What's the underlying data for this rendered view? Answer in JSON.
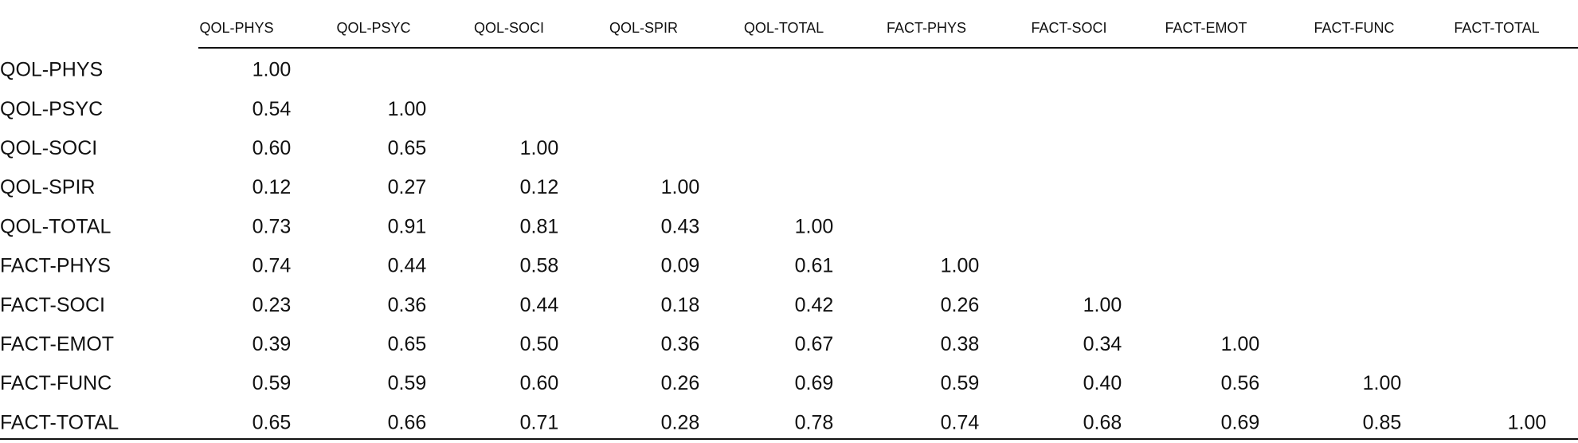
{
  "table": {
    "columns": [
      "QOL-PHYS",
      "QOL-PSYC",
      "QOL-SOCI",
      "QOL-SPIR",
      "QOL-TOTAL",
      "FACT-PHYS",
      "FACT-SOCI",
      "FACT-EMOT",
      "FACT-FUNC",
      "FACT-TOTAL"
    ],
    "rows": [
      {
        "label": "QOL-PHYS",
        "cells": [
          "1.00"
        ]
      },
      {
        "label": "QOL-PSYC",
        "cells": [
          "0.54",
          "1.00"
        ]
      },
      {
        "label": "QOL-SOCI",
        "cells": [
          "0.60",
          "0.65",
          "1.00"
        ]
      },
      {
        "label": "QOL-SPIR",
        "cells": [
          "0.12",
          "0.27",
          "0.12",
          "1.00"
        ]
      },
      {
        "label": "QOL-TOTAL",
        "cells": [
          "0.73",
          "0.91",
          "0.81",
          "0.43",
          "1.00"
        ]
      },
      {
        "label": "FACT-PHYS",
        "cells": [
          "0.74",
          "0.44",
          "0.58",
          "0.09",
          "0.61",
          "1.00"
        ]
      },
      {
        "label": "FACT-SOCI",
        "cells": [
          "0.23",
          "0.36",
          "0.44",
          "0.18",
          "0.42",
          "0.26",
          "1.00"
        ]
      },
      {
        "label": "FACT-EMOT",
        "cells": [
          "0.39",
          "0.65",
          "0.50",
          "0.36",
          "0.67",
          "0.38",
          "0.34",
          "1.00"
        ]
      },
      {
        "label": "FACT-FUNC",
        "cells": [
          "0.59",
          "0.59",
          "0.60",
          "0.26",
          "0.69",
          "0.59",
          "0.40",
          "0.56",
          "1.00"
        ]
      },
      {
        "label": "FACT-TOTAL",
        "cells": [
          "0.65",
          "0.66",
          "0.71",
          "0.28",
          "0.78",
          "0.74",
          "0.68",
          "0.69",
          "0.85",
          "1.00"
        ]
      }
    ]
  }
}
